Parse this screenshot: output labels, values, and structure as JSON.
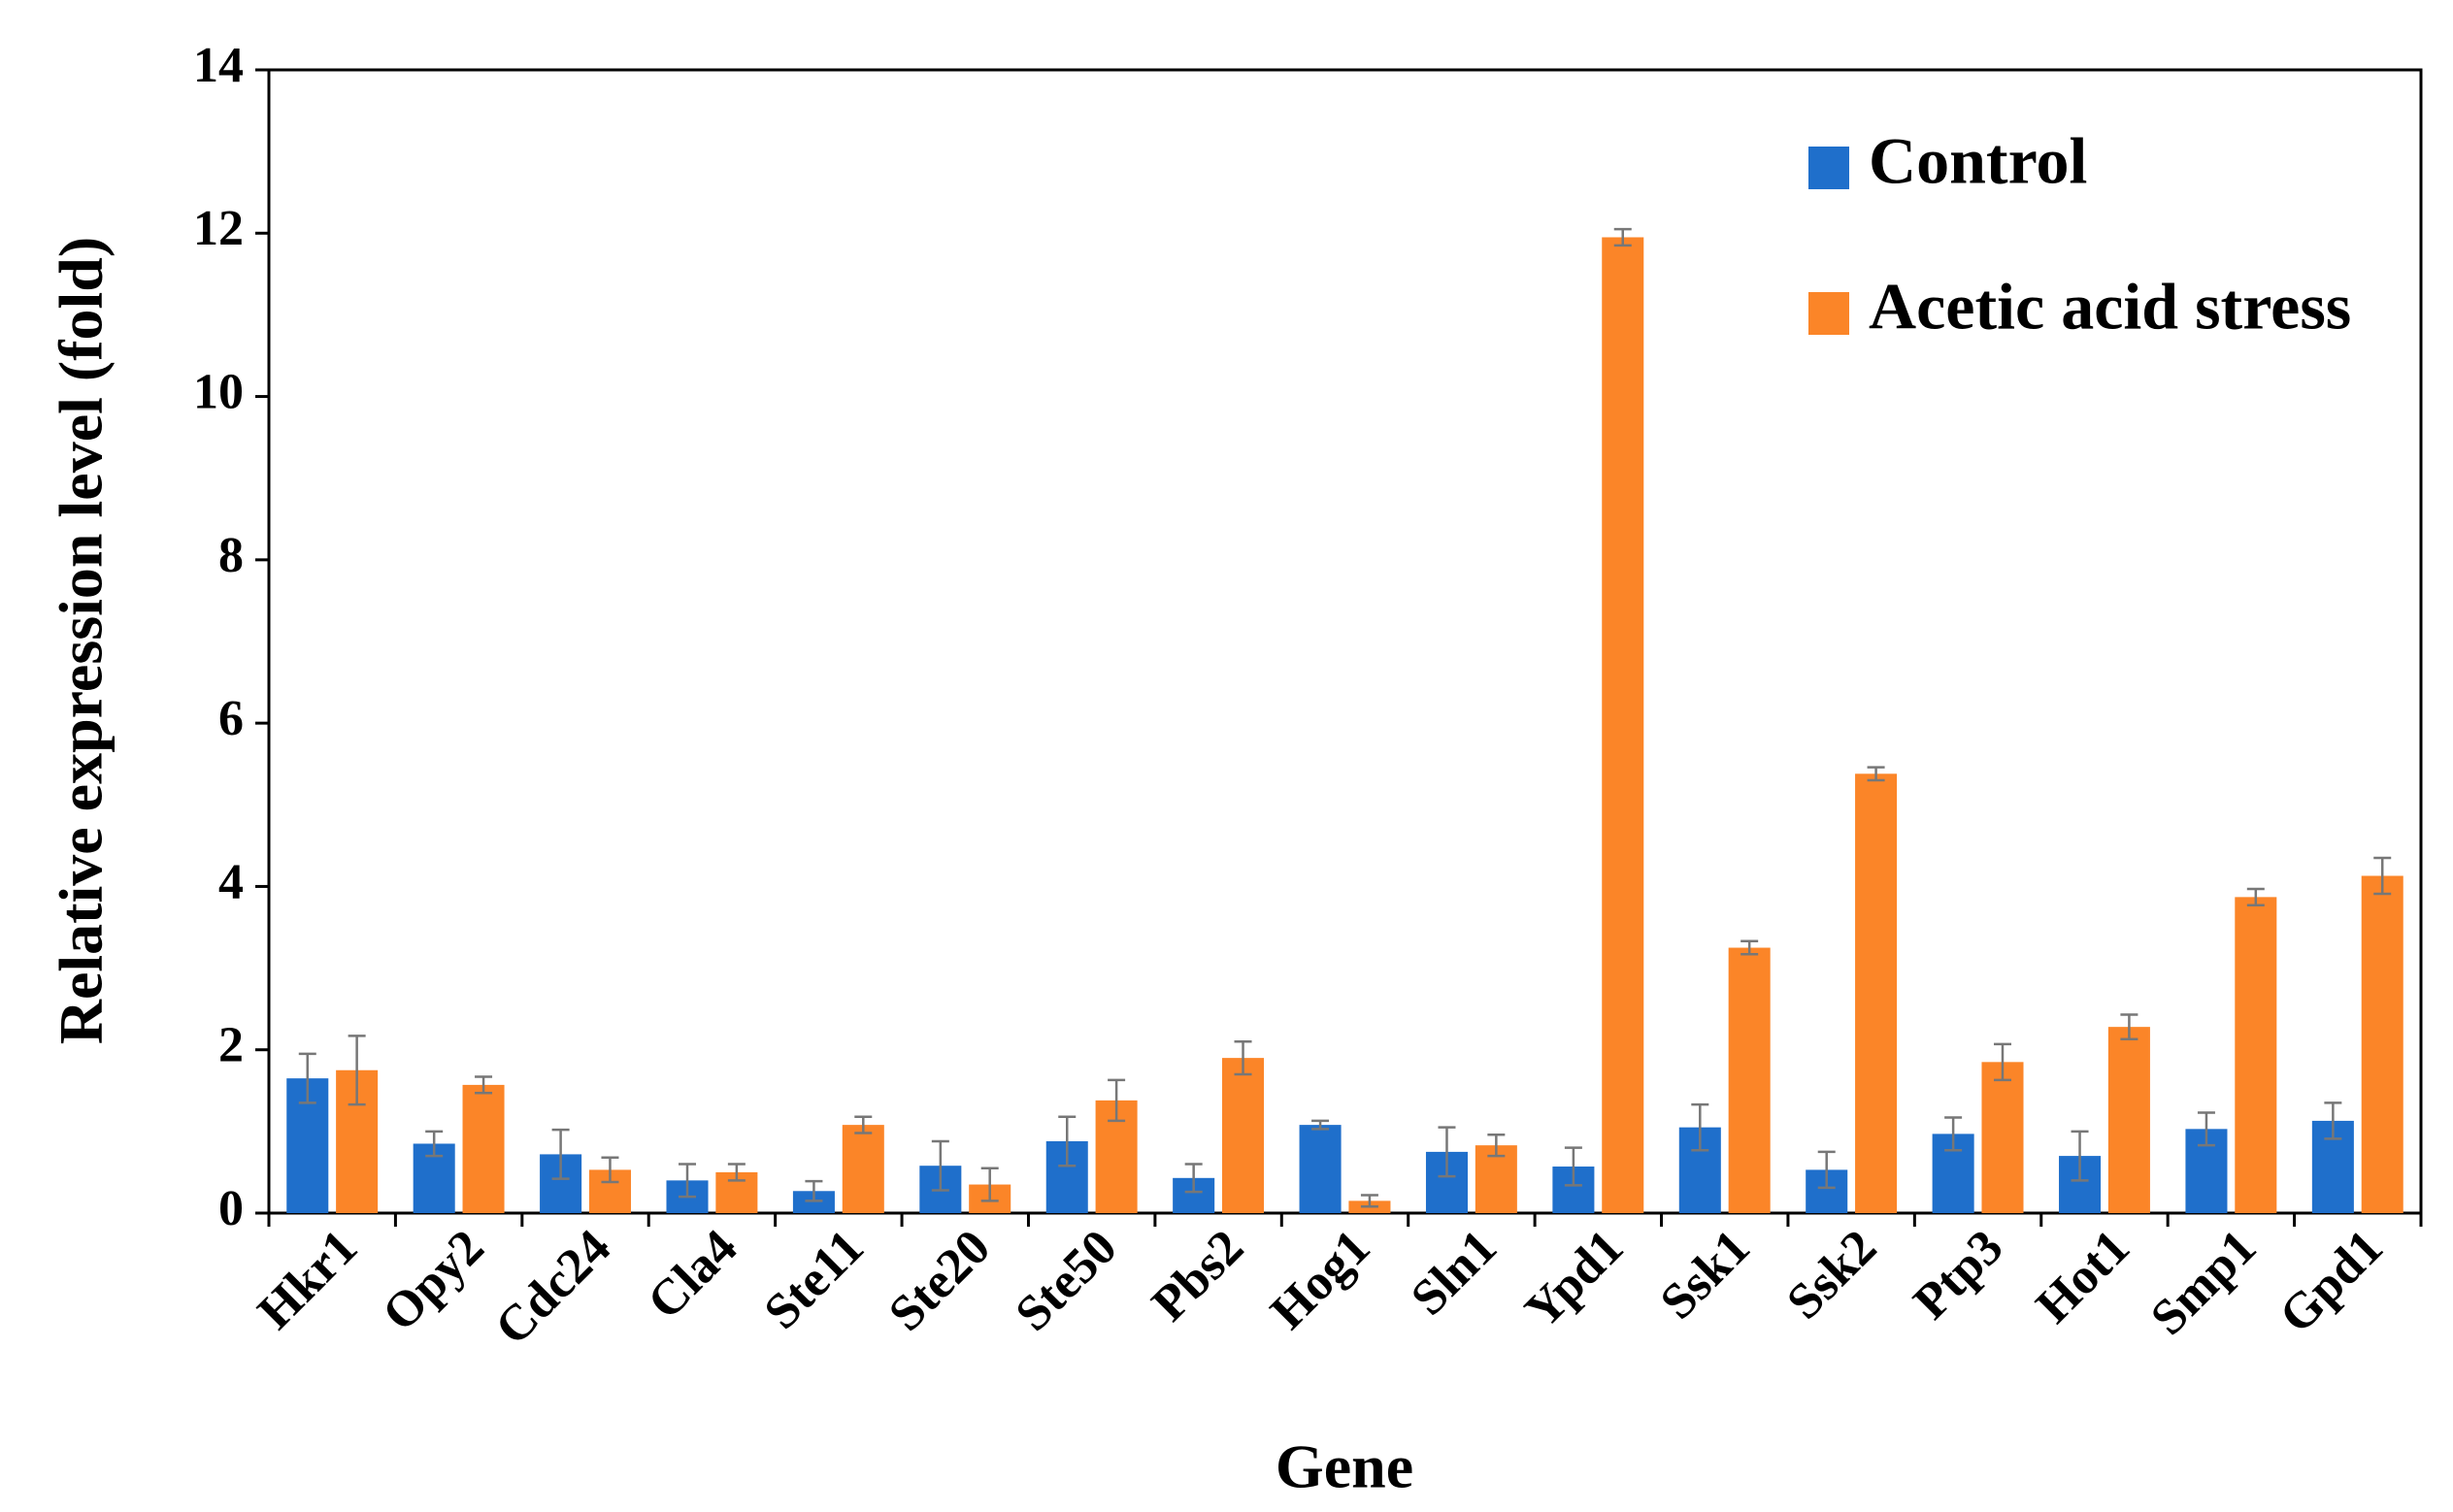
{
  "chart_data": {
    "type": "bar",
    "x_label": "Gene",
    "y_label": "Relative expression level (fold)",
    "categories": [
      "Hkr1",
      "Opy2",
      "Cdc24",
      "Cla4",
      "Ste11",
      "Ste20",
      "Ste50",
      "Pbs2",
      "Hog1",
      "Sln1",
      "Ypd1",
      "Ssk1",
      "Ssk2",
      "Ptp3",
      "Hot1",
      "Smp1",
      "Gpd1"
    ],
    "series": [
      {
        "name": "Control",
        "color": "#1f6fcb",
        "values": [
          1.65,
          0.85,
          0.72,
          0.4,
          0.27,
          0.58,
          0.88,
          0.43,
          1.08,
          0.75,
          0.57,
          1.05,
          0.53,
          0.97,
          0.7,
          1.03,
          1.13
        ],
        "errors": [
          0.3,
          0.15,
          0.3,
          0.2,
          0.12,
          0.3,
          0.3,
          0.17,
          0.05,
          0.3,
          0.23,
          0.28,
          0.22,
          0.2,
          0.3,
          0.2,
          0.22
        ]
      },
      {
        "name": "Acetic acid stress",
        "color": "#fb8528",
        "values": [
          1.75,
          1.57,
          0.53,
          0.5,
          1.08,
          0.35,
          1.38,
          1.9,
          0.15,
          0.83,
          11.95,
          3.25,
          5.38,
          1.85,
          2.28,
          3.87,
          4.13
        ],
        "errors": [
          0.42,
          0.1,
          0.15,
          0.1,
          0.1,
          0.2,
          0.25,
          0.2,
          0.07,
          0.13,
          0.1,
          0.08,
          0.08,
          0.22,
          0.15,
          0.1,
          0.22
        ]
      }
    ],
    "ylim": [
      0,
      14
    ],
    "yticks": [
      0,
      2,
      4,
      6,
      8,
      10,
      12,
      14
    ],
    "error_bar_color": "#777777",
    "legend": "top-right"
  }
}
